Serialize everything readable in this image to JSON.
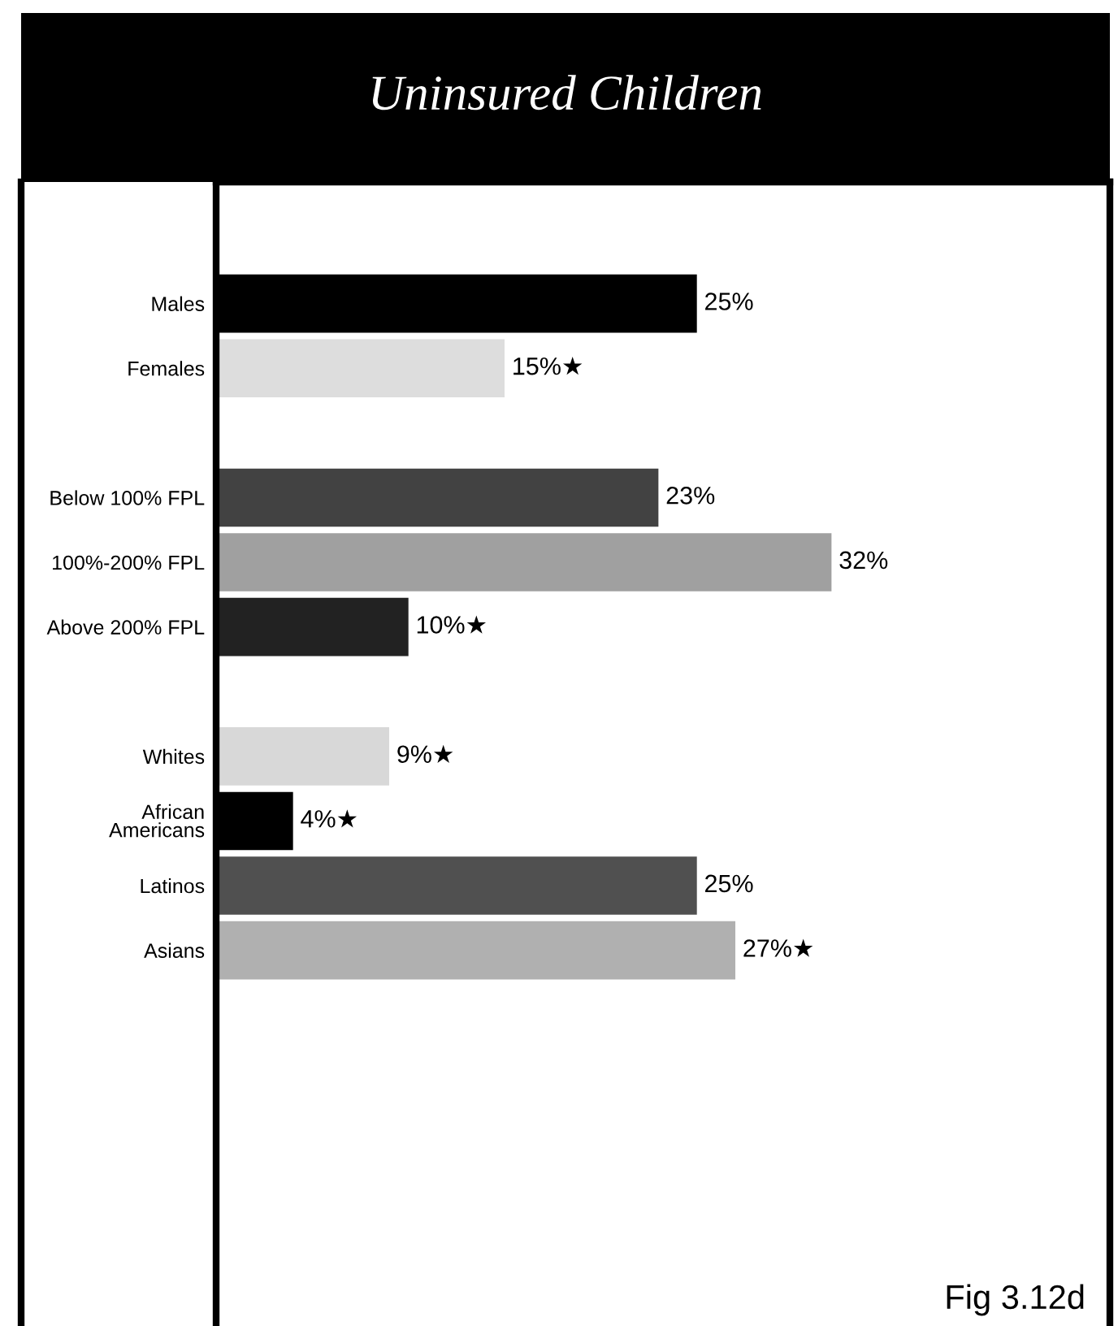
{
  "chart_data": {
    "type": "bar",
    "orientation": "horizontal",
    "title": "Uninsured Children",
    "categories": [
      "Males",
      "Females",
      null,
      "Below 100% FPL",
      "100%-200% FPL",
      "Above 200% FPL",
      null,
      "Whites",
      "African\nAmericans",
      "Latinos",
      "Asians"
    ],
    "values": [
      25,
      15,
      null,
      23,
      32,
      10,
      null,
      9,
      4,
      25,
      27
    ],
    "colors": [
      "#000000",
      "#dddddd",
      null,
      "#424242",
      "#a0a0a0",
      "#222222",
      null,
      "#d8d8d8",
      "#000000",
      "#505050",
      "#b0b0b0"
    ],
    "value_labels": [
      "25%",
      "15%★",
      null,
      "23%",
      "32%",
      "10%★",
      null,
      "9%★",
      "4%★",
      "25%",
      "27%★"
    ],
    "tick_labels": "y",
    "annotations": [
      "Fig 3.12d"
    ]
  }
}
